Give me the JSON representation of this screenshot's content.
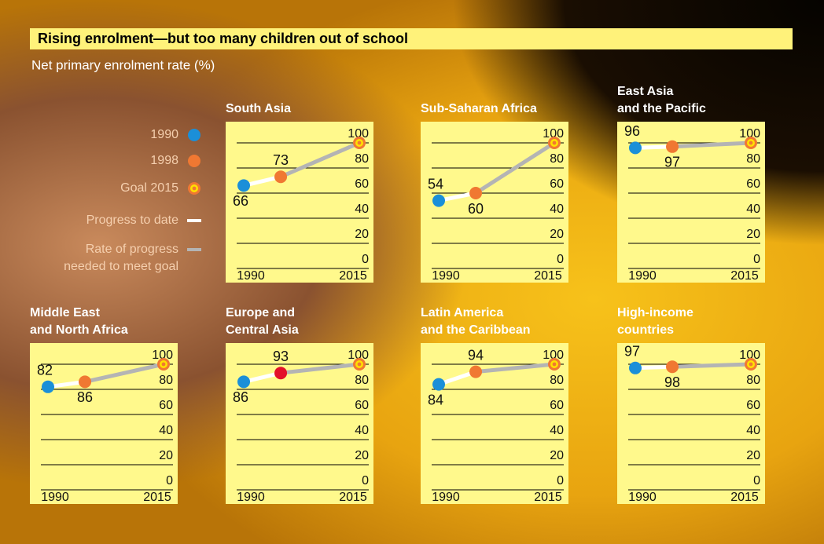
{
  "title": "Rising enrolment—but too many children out of school",
  "subtitle": "Net primary enrolment rate (%)",
  "legend": [
    {
      "label": [
        "1990"
      ],
      "marker": "dot",
      "color": "#1b8fd8"
    },
    {
      "label": [
        "1998"
      ],
      "marker": "dot",
      "color": "#f07832"
    },
    {
      "label": [
        "Goal 2015"
      ],
      "marker": "target",
      "color": "#f07832"
    },
    {
      "label": [
        "Progress to date"
      ],
      "marker": "line",
      "color": "#ffffff"
    },
    {
      "label": [
        "Rate of progress",
        "needed to meet goal"
      ],
      "marker": "line",
      "color": "#b4b4b4"
    }
  ],
  "chart_data": [
    {
      "type": "line",
      "title": [
        "South Asia"
      ],
      "x": [
        1990,
        1998,
        2015
      ],
      "values": [
        66,
        73,
        100
      ],
      "colors": [
        "#1b8fd8",
        "#f07832",
        "#f07832"
      ],
      "xlim": [
        1990,
        2015
      ],
      "xticks": [
        1990,
        2015
      ],
      "ylim": [
        0,
        100
      ],
      "yticks": [
        0,
        20,
        40,
        60,
        80,
        100
      ]
    },
    {
      "type": "line",
      "title": [
        "Sub-Saharan Africa"
      ],
      "x": [
        1990,
        1998,
        2015
      ],
      "values": [
        54,
        60,
        100
      ],
      "colors": [
        "#1b8fd8",
        "#f07832",
        "#f07832"
      ],
      "xlim": [
        1990,
        2015
      ],
      "xticks": [
        1990,
        2015
      ],
      "ylim": [
        0,
        100
      ],
      "yticks": [
        0,
        20,
        40,
        60,
        80,
        100
      ]
    },
    {
      "type": "line",
      "title": [
        "East Asia",
        "and the Pacific"
      ],
      "x": [
        1990,
        1998,
        2015
      ],
      "values": [
        96,
        97,
        100
      ],
      "colors": [
        "#1b8fd8",
        "#f07832",
        "#f07832"
      ],
      "xlim": [
        1990,
        2015
      ],
      "xticks": [
        1990,
        2015
      ],
      "ylim": [
        0,
        100
      ],
      "yticks": [
        0,
        20,
        40,
        60,
        80,
        100
      ]
    },
    {
      "type": "line",
      "title": [
        "Middle East",
        "and North Africa"
      ],
      "x": [
        1990,
        1998,
        2015
      ],
      "values": [
        82,
        86,
        100
      ],
      "colors": [
        "#1b8fd8",
        "#f07832",
        "#f07832"
      ],
      "xlim": [
        1990,
        2015
      ],
      "xticks": [
        1990,
        2015
      ],
      "ylim": [
        0,
        100
      ],
      "yticks": [
        0,
        20,
        40,
        60,
        80,
        100
      ]
    },
    {
      "type": "line",
      "title": [
        "Europe and",
        "Central Asia"
      ],
      "x": [
        1990,
        1998,
        2015
      ],
      "values": [
        86,
        93,
        100
      ],
      "colors": [
        "#1b8fd8",
        "#e3102a",
        "#f07832"
      ],
      "xlim": [
        1990,
        2015
      ],
      "xticks": [
        1990,
        2015
      ],
      "ylim": [
        0,
        100
      ],
      "yticks": [
        0,
        20,
        40,
        60,
        80,
        100
      ]
    },
    {
      "type": "line",
      "title": [
        "Latin America",
        "and the Caribbean"
      ],
      "x": [
        1990,
        1998,
        2015
      ],
      "values": [
        84,
        94,
        100
      ],
      "colors": [
        "#1b8fd8",
        "#f07832",
        "#f07832"
      ],
      "xlim": [
        1990,
        2015
      ],
      "xticks": [
        1990,
        2015
      ],
      "ylim": [
        0,
        100
      ],
      "yticks": [
        0,
        20,
        40,
        60,
        80,
        100
      ]
    },
    {
      "type": "line",
      "title": [
        "High-income",
        "countries"
      ],
      "x": [
        1990,
        1998,
        2015
      ],
      "values": [
        97,
        98,
        100
      ],
      "colors": [
        "#1b8fd8",
        "#f07832",
        "#f07832"
      ],
      "xlim": [
        1990,
        2015
      ],
      "xticks": [
        1990,
        2015
      ],
      "ylim": [
        0,
        100
      ],
      "yticks": [
        0,
        20,
        40,
        60,
        80,
        100
      ]
    }
  ]
}
